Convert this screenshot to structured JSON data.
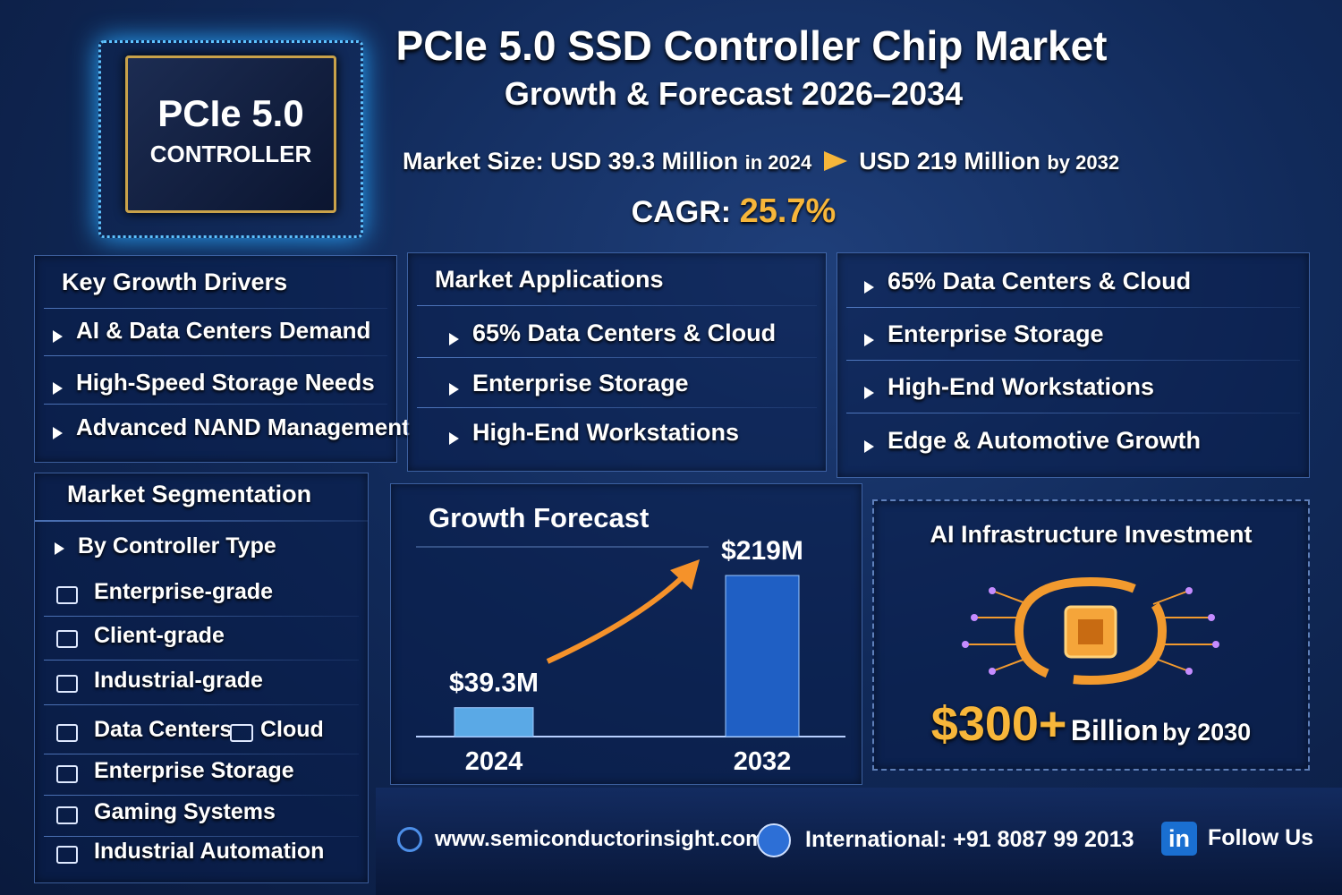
{
  "header": {
    "title": "PCIe 5.0 SSD Controller Chip Market",
    "subtitle": "Growth & Forecast 2026–2034",
    "chip_lines": [
      "PCIe 5.0",
      "CONTROLLER"
    ]
  },
  "market_size": {
    "label": "Market Size:",
    "start_value": "USD 39.3 Million",
    "start_year": "in 2024",
    "end_value": "USD 219 Million",
    "end_year": "by 2032",
    "cagr_label": "CAGR:",
    "cagr_value": "25.7%"
  },
  "drivers": {
    "title": "Key Growth Drivers",
    "items": [
      "AI & Data Centers Demand",
      "High-Speed Storage Needs",
      "Advanced NAND Management"
    ]
  },
  "applications": {
    "title": "Market Applications",
    "items": [
      "65% Data Centers & Cloud",
      "Enterprise Storage",
      "High-End Workstations"
    ]
  },
  "highlights": {
    "items": [
      "65% Data Centers & Cloud",
      "Enterprise Storage",
      "High-End Workstations",
      "Edge & Automotive Growth"
    ]
  },
  "segmentation": {
    "title": "Market Segmentation",
    "heading": "By Controller Type",
    "items": [
      "Enterprise-grade",
      "Client-grade",
      "Industrial-grade",
      "Data Centers",
      "Cloud",
      "Enterprise Storage",
      "Gaming Systems",
      "Industrial Automation"
    ]
  },
  "chart_data": {
    "type": "bar",
    "title": "Growth Forecast",
    "categories": [
      "2024",
      "2032"
    ],
    "values": [
      39.3,
      219
    ],
    "value_labels": [
      "$39.3M",
      "$219M"
    ],
    "colors": [
      "#5aa9e6",
      "#1f5fc4"
    ]
  },
  "ai_investment": {
    "title": "AI Infrastructure Investment",
    "amount": "$300+",
    "unit": "Billion",
    "year": "by 2030"
  },
  "footer": {
    "website": "www.semiconductorinsight.com",
    "phone": "International: +91 8087 99 2013",
    "social_icon": "in",
    "social": "Follow Us"
  }
}
